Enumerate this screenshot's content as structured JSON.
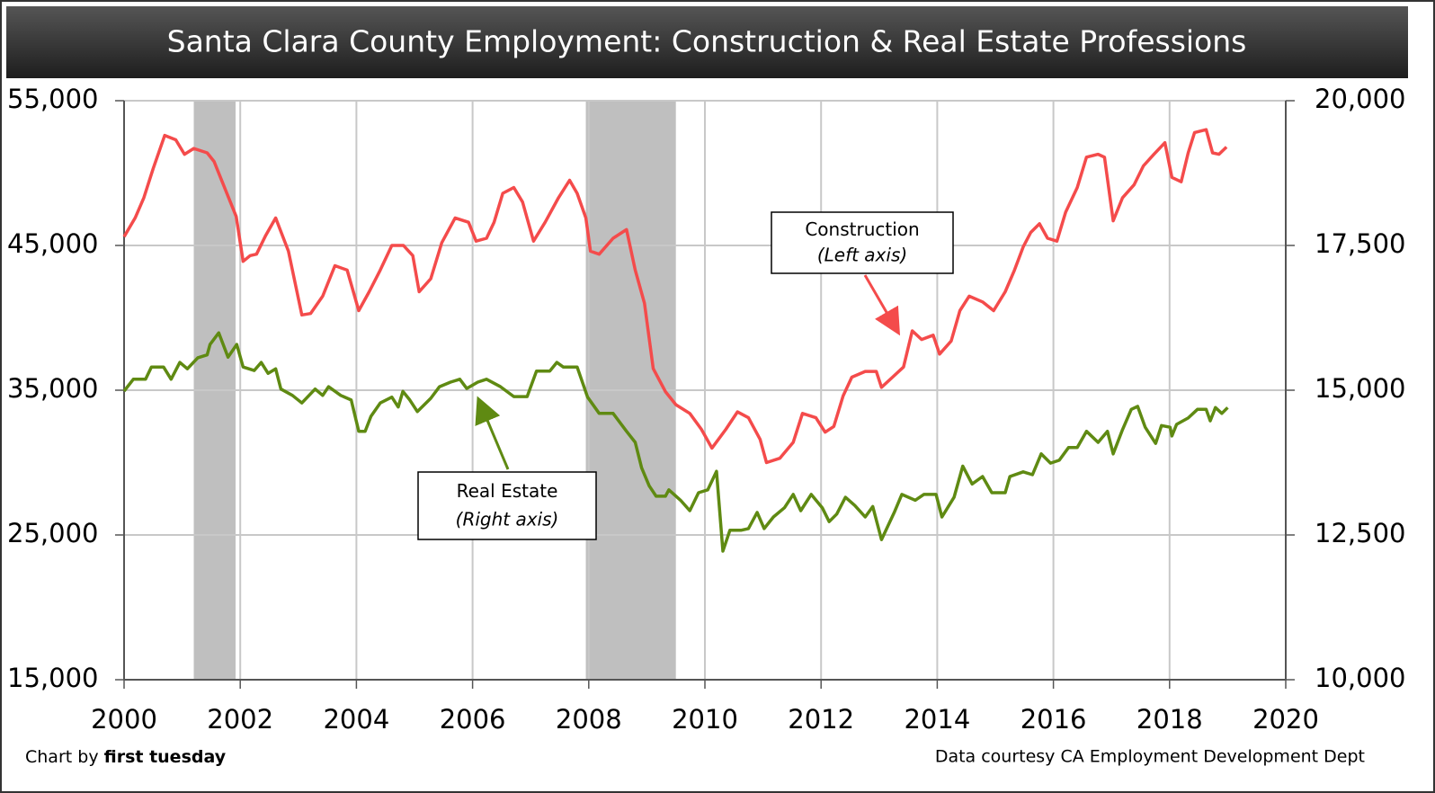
{
  "chart_data": {
    "type": "line",
    "title": "Santa Clara County Employment: Construction & Real Estate Professions",
    "credit": "Chart by",
    "credit_name": "first tuesday",
    "source": "Data courtesy CA Employment Development Dept",
    "xlim": [
      2000,
      2020
    ],
    "xticks": [
      2000,
      2002,
      2004,
      2006,
      2008,
      2010,
      2012,
      2014,
      2016,
      2018,
      2020
    ],
    "ylim": [
      15000,
      55000
    ],
    "yticks": [
      {
        "value": 15000,
        "label": "15,000"
      },
      {
        "value": 25000,
        "label": "25,000"
      },
      {
        "value": 35000,
        "label": "35,000"
      },
      {
        "value": 45000,
        "label": "45,000"
      },
      {
        "value": 55000,
        "label": "55,000"
      }
    ],
    "y2lim": [
      10000,
      20000
    ],
    "y2ticks": [
      {
        "value": 10000,
        "label": "10,000"
      },
      {
        "value": 12500,
        "label": "12,500"
      },
      {
        "value": 15000,
        "label": "15,000"
      },
      {
        "value": 17500,
        "label": "17,500"
      },
      {
        "value": 20000,
        "label": "20,000"
      }
    ],
    "grid": true,
    "shaded_ranges": [
      [
        2001.2,
        2001.92
      ],
      [
        2007.95,
        2009.5
      ]
    ],
    "shade_color": "#bfbfbf",
    "annotations": [
      {
        "text": "Construction",
        "subtext": "(Left axis)"
      },
      {
        "text": "Real Estate",
        "subtext": "(Right axis)"
      }
    ],
    "series": [
      {
        "name": "Construction",
        "color": "#f44b4b",
        "axis": "y",
        "x": [
          2000.0,
          2000.19,
          2000.34,
          2000.5,
          2000.7,
          2000.89,
          2001.04,
          2001.2,
          2001.43,
          2001.55,
          2001.66,
          2001.93,
          2002.05,
          2002.17,
          2002.28,
          2002.44,
          2002.61,
          2002.83,
          2003.06,
          2003.21,
          2003.42,
          2003.63,
          2003.84,
          2004.04,
          2004.22,
          2004.41,
          2004.61,
          2004.81,
          2004.97,
          2005.08,
          2005.28,
          2005.47,
          2005.7,
          2005.93,
          2006.06,
          2006.24,
          2006.37,
          2006.52,
          2006.71,
          2006.86,
          2007.05,
          2007.25,
          2007.48,
          2007.67,
          2007.8,
          2007.95,
          2008.03,
          2008.18,
          2008.42,
          2008.65,
          2008.8,
          2008.96,
          2009.11,
          2009.32,
          2009.5,
          2009.74,
          2009.94,
          2010.12,
          2010.36,
          2010.56,
          2010.75,
          2010.95,
          2011.06,
          2011.29,
          2011.52,
          2011.68,
          2011.91,
          2012.07,
          2012.22,
          2012.38,
          2012.53,
          2012.76,
          2012.95,
          2013.04,
          2013.23,
          2013.42,
          2013.57,
          2013.73,
          2013.93,
          2014.04,
          2014.24,
          2014.39,
          2014.55,
          2014.78,
          2014.97,
          2015.17,
          2015.33,
          2015.48,
          2015.61,
          2015.76,
          2015.9,
          2016.06,
          2016.21,
          2016.41,
          2016.57,
          2016.77,
          2016.88,
          2017.03,
          2017.19,
          2017.39,
          2017.55,
          2017.73,
          2017.92,
          2018.04,
          2018.2,
          2018.32,
          2018.43,
          2018.63,
          2018.74,
          2018.85,
          2018.98
        ],
        "values": [
          45600,
          46900,
          48300,
          50300,
          52600,
          52300,
          51300,
          51700,
          51400,
          50800,
          49700,
          47000,
          43900,
          44300,
          44400,
          45700,
          46900,
          44600,
          40200,
          40300,
          41500,
          43600,
          43300,
          40500,
          41800,
          43300,
          45000,
          45000,
          44300,
          41800,
          42700,
          45200,
          46900,
          46600,
          45300,
          45500,
          46600,
          48600,
          49000,
          48000,
          45300,
          46600,
          48300,
          49500,
          48600,
          46900,
          44600,
          44400,
          45500,
          46100,
          43300,
          41000,
          36500,
          34900,
          34000,
          33400,
          32300,
          31000,
          32300,
          33500,
          33100,
          31600,
          30000,
          30300,
          31400,
          33400,
          33100,
          32100,
          32500,
          34600,
          35900,
          36300,
          36300,
          35200,
          35900,
          36600,
          39100,
          38500,
          38800,
          37500,
          38400,
          40500,
          41500,
          41100,
          40500,
          41800,
          43300,
          44900,
          45900,
          46500,
          45500,
          45300,
          47300,
          49000,
          51100,
          51300,
          51100,
          46700,
          48300,
          49200,
          50500,
          51300,
          52100,
          49700,
          49400,
          51400,
          52800,
          53000,
          51400,
          51300,
          51800
        ]
      },
      {
        "name": "Real Estate",
        "color": "#5f8a12",
        "axis": "y2",
        "x": [
          2000.0,
          2000.16,
          2000.37,
          2000.47,
          2000.68,
          2000.81,
          2000.96,
          2001.09,
          2001.27,
          2001.43,
          2001.48,
          2001.63,
          2001.79,
          2001.94,
          2002.05,
          2002.24,
          2002.36,
          2002.48,
          2002.61,
          2002.7,
          2002.9,
          2003.06,
          2003.29,
          2003.42,
          2003.52,
          2003.73,
          2003.91,
          2004.04,
          2004.15,
          2004.25,
          2004.41,
          2004.61,
          2004.72,
          2004.8,
          2004.92,
          2005.05,
          2005.28,
          2005.43,
          2005.62,
          2005.78,
          2005.9,
          2006.09,
          2006.24,
          2006.48,
          2006.71,
          2006.94,
          2007.1,
          2007.33,
          2007.45,
          2007.56,
          2007.8,
          2007.98,
          2008.18,
          2008.42,
          2008.65,
          2008.8,
          2008.91,
          2009.04,
          2009.16,
          2009.32,
          2009.38,
          2009.58,
          2009.74,
          2009.89,
          2010.05,
          2010.2,
          2010.31,
          2010.43,
          2010.62,
          2010.75,
          2010.9,
          2011.02,
          2011.18,
          2011.37,
          2011.52,
          2011.65,
          2011.83,
          2012.02,
          2012.14,
          2012.27,
          2012.42,
          2012.58,
          2012.76,
          2012.89,
          2013.04,
          2013.26,
          2013.39,
          2013.62,
          2013.77,
          2013.98,
          2014.08,
          2014.29,
          2014.44,
          2014.6,
          2014.78,
          2014.94,
          2015.17,
          2015.25,
          2015.48,
          2015.64,
          2015.79,
          2015.95,
          2016.1,
          2016.26,
          2016.41,
          2016.57,
          2016.77,
          2016.93,
          2017.03,
          2017.19,
          2017.34,
          2017.45,
          2017.58,
          2017.76,
          2017.86,
          2018.01,
          2018.04,
          2018.12,
          2018.32,
          2018.48,
          2018.63,
          2018.7,
          2018.79,
          2018.9,
          2019.0
        ],
        "values": [
          14985,
          15190,
          15190,
          15400,
          15400,
          15190,
          15480,
          15370,
          15560,
          15610,
          15790,
          15990,
          15570,
          15790,
          15400,
          15340,
          15480,
          15290,
          15370,
          15020,
          14910,
          14780,
          15020,
          14910,
          15060,
          14910,
          14830,
          14290,
          14290,
          14550,
          14780,
          14880,
          14710,
          14980,
          14830,
          14630,
          14860,
          15060,
          15140,
          15190,
          15030,
          15140,
          15190,
          15060,
          14890,
          14890,
          15330,
          15330,
          15480,
          15400,
          15400,
          14880,
          14600,
          14600,
          14290,
          14100,
          13660,
          13350,
          13170,
          13170,
          13280,
          13100,
          12920,
          13230,
          13280,
          13600,
          12220,
          12580,
          12580,
          12610,
          12890,
          12610,
          12810,
          12970,
          13200,
          12920,
          13200,
          12970,
          12730,
          12860,
          13150,
          13010,
          12810,
          12990,
          12420,
          12890,
          13200,
          13100,
          13200,
          13200,
          12810,
          13150,
          13690,
          13380,
          13510,
          13230,
          13230,
          13510,
          13590,
          13540,
          13900,
          13740,
          13790,
          14010,
          14010,
          14290,
          14100,
          14290,
          13900,
          14320,
          14670,
          14720,
          14360,
          14080,
          14390,
          14360,
          14210,
          14410,
          14520,
          14670,
          14670,
          14470,
          14700,
          14600,
          14700
        ]
      }
    ]
  }
}
